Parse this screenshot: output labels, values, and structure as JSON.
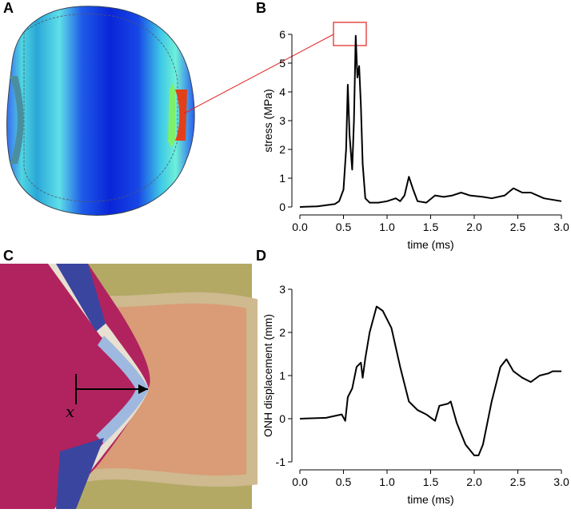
{
  "panel_labels": [
    "A",
    "B",
    "C",
    "D"
  ],
  "annotation": "x",
  "chart_data": [
    {
      "type": "line",
      "x_label": "time (ms)",
      "y_label": "stress (MPa)",
      "color": "#000000",
      "x": [
        0,
        0.2,
        0.4,
        0.45,
        0.5,
        0.53,
        0.55,
        0.57,
        0.6,
        0.62,
        0.64,
        0.66,
        0.68,
        0.7,
        0.72,
        0.75,
        0.8,
        0.9,
        1.0,
        1.1,
        1.15,
        1.2,
        1.25,
        1.3,
        1.35,
        1.45,
        1.55,
        1.65,
        1.75,
        1.85,
        1.95,
        2.1,
        2.2,
        2.35,
        2.45,
        2.55,
        2.65,
        2.8,
        3.0
      ],
      "values": [
        0,
        0.02,
        0.1,
        0.2,
        0.6,
        2.0,
        4.25,
        2.5,
        1.3,
        3.0,
        5.95,
        4.5,
        4.9,
        3.5,
        1.5,
        0.3,
        0.15,
        0.15,
        0.2,
        0.3,
        0.2,
        0.4,
        1.05,
        0.6,
        0.2,
        0.15,
        0.4,
        0.35,
        0.4,
        0.5,
        0.4,
        0.35,
        0.3,
        0.4,
        0.65,
        0.5,
        0.5,
        0.3,
        0.2
      ],
      "xlim": [
        0,
        3
      ],
      "ylim": [
        0,
        6
      ],
      "xticks": [
        {
          "value": 0,
          "label": "0.0"
        },
        {
          "value": 0.5,
          "label": "0.5"
        },
        {
          "value": 1,
          "label": "1.0"
        },
        {
          "value": 1.5,
          "label": "1.5"
        },
        {
          "value": 2,
          "label": "2.0"
        },
        {
          "value": 2.5,
          "label": "2.5"
        },
        {
          "value": 3,
          "label": "3.0"
        }
      ],
      "yticks": [
        0,
        1,
        2,
        3,
        4,
        5,
        6
      ]
    },
    {
      "type": "line",
      "x_label": "time (ms)",
      "y_label": "ONH displacement (mm)",
      "color": "#000000",
      "x": [
        0,
        0.3,
        0.48,
        0.52,
        0.55,
        0.6,
        0.65,
        0.7,
        0.72,
        0.75,
        0.8,
        0.88,
        0.95,
        1.05,
        1.15,
        1.25,
        1.35,
        1.45,
        1.55,
        1.6,
        1.7,
        1.73,
        1.8,
        1.9,
        2.0,
        2.05,
        2.1,
        2.2,
        2.3,
        2.37,
        2.45,
        2.55,
        2.65,
        2.75,
        2.85,
        2.9,
        3.0
      ],
      "values": [
        0,
        0.02,
        0.1,
        -0.05,
        0.5,
        0.7,
        1.2,
        1.3,
        0.95,
        1.4,
        2.0,
        2.6,
        2.5,
        2.1,
        1.2,
        0.4,
        0.2,
        0.1,
        -0.05,
        0.3,
        0.35,
        0.4,
        -0.1,
        -0.6,
        -0.85,
        -0.85,
        -0.6,
        0.4,
        1.2,
        1.38,
        1.1,
        0.95,
        0.85,
        1.0,
        1.05,
        1.1,
        1.1
      ],
      "xlim": [
        0,
        3
      ],
      "ylim": [
        -1,
        3
      ],
      "xticks": [
        {
          "value": 0,
          "label": "0.0"
        },
        {
          "value": 0.5,
          "label": "0.5"
        },
        {
          "value": 1,
          "label": "1.0"
        },
        {
          "value": 1.5,
          "label": "1.5"
        },
        {
          "value": 2,
          "label": "2.0"
        },
        {
          "value": 2.5,
          "label": "2.5"
        },
        {
          "value": 3,
          "label": "3.0"
        }
      ],
      "yticks": [
        -1,
        0,
        1,
        2,
        3
      ]
    }
  ]
}
